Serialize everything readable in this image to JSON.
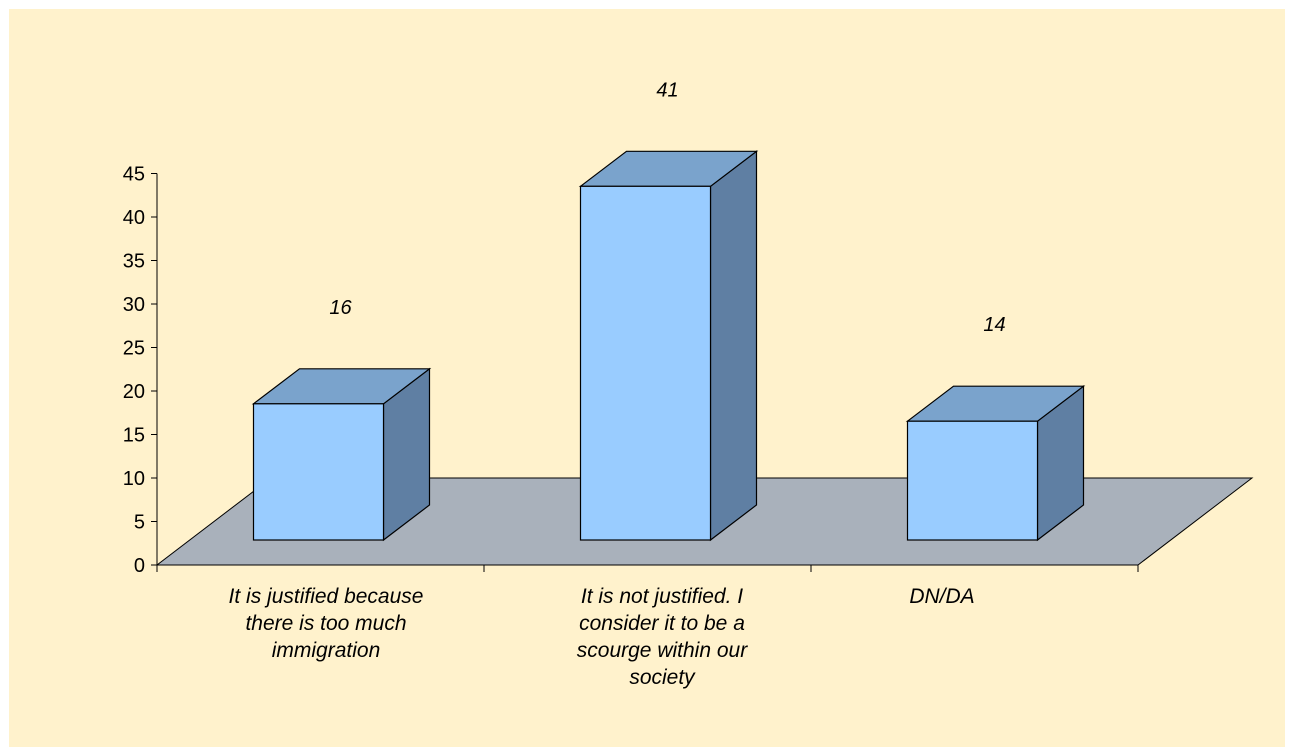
{
  "chart_data": {
    "type": "bar",
    "style": "3d-column",
    "categories": [
      "It is justified because\nthere is too much\nimmigration",
      "It is not justified. I\nconsider it to be a\nscourge within our\nsociety",
      "DN/DA"
    ],
    "values": [
      16,
      41,
      14
    ],
    "data_labels": [
      "16",
      "41",
      "14"
    ],
    "ylim": [
      0,
      45
    ],
    "yticks": [
      "0",
      "5",
      "10",
      "15",
      "20",
      "25",
      "30",
      "35",
      "40",
      "45"
    ],
    "grid": false,
    "legend": "none",
    "title": "",
    "xlabel": "",
    "ylabel": ""
  },
  "colors": {
    "background": "#fff2cc",
    "floor": "#a9b1bb",
    "bar_front": "#99ccff",
    "bar_top": "#7aa3cc",
    "bar_side": "#5f7fa3",
    "outline": "#000000"
  }
}
